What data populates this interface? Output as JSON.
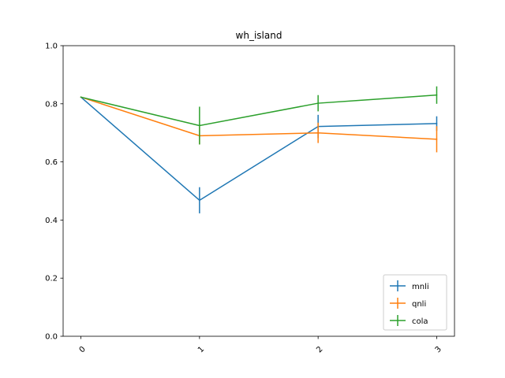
{
  "chart_data": {
    "type": "line",
    "title": "wh_island",
    "xlabel": "",
    "ylabel": "",
    "x": [
      0,
      1,
      2,
      3
    ],
    "xticks": [
      "0",
      "1",
      "2",
      "3"
    ],
    "xlim": [
      -0.15,
      3.15
    ],
    "ylim": [
      0.0,
      1.0
    ],
    "yticks": [
      "0.0",
      "0.2",
      "0.4",
      "0.6",
      "0.8",
      "1.0"
    ],
    "grid": false,
    "legend_position": "lower-right",
    "series": [
      {
        "name": "mnli",
        "color": "#1f77b4",
        "values": [
          0.823,
          0.468,
          0.722,
          0.732
        ],
        "errors": [
          0.0,
          0.045,
          0.04,
          0.025
        ]
      },
      {
        "name": "qnli",
        "color": "#ff7f0e",
        "values": [
          0.823,
          0.69,
          0.7,
          0.678
        ],
        "errors": [
          0.0,
          0.03,
          0.035,
          0.045
        ]
      },
      {
        "name": "cola",
        "color": "#2ca02c",
        "values": [
          0.823,
          0.725,
          0.802,
          0.83
        ],
        "errors": [
          0.0,
          0.065,
          0.028,
          0.03
        ]
      }
    ]
  }
}
